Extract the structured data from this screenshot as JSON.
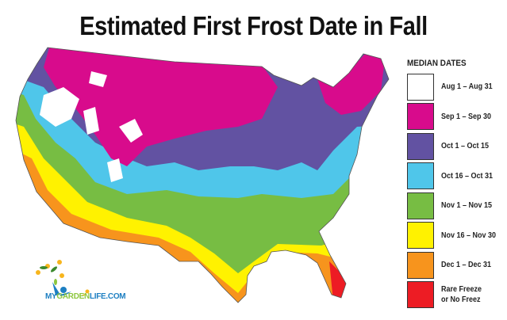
{
  "title": "Estimated First Frost Date in Fall",
  "legend": {
    "title": "MEDIAN DATES",
    "items": [
      {
        "label": "Aug 1 – Aug 31",
        "color": "#ffffff"
      },
      {
        "label": "Sep 1 – Sep 30",
        "color": "#d80b8c"
      },
      {
        "label": "Oct 1 – Oct 15",
        "color": "#6252a2"
      },
      {
        "label": "Oct 16 – Oct 31",
        "color": "#4fc6ea"
      },
      {
        "label": "Nov 1 – Nov 15",
        "color": "#77bd43"
      },
      {
        "label": "Nov 16 – Nov 30",
        "color": "#fff200"
      },
      {
        "label": "Dec 1 – Dec 31",
        "color": "#f7941d"
      },
      {
        "label": "Rare Freeze\nor No Freez",
        "color": "#ed1c24"
      }
    ]
  },
  "logo": {
    "part1": "MY",
    "part2": "GARDEN",
    "part3": "LIFE.COM"
  }
}
